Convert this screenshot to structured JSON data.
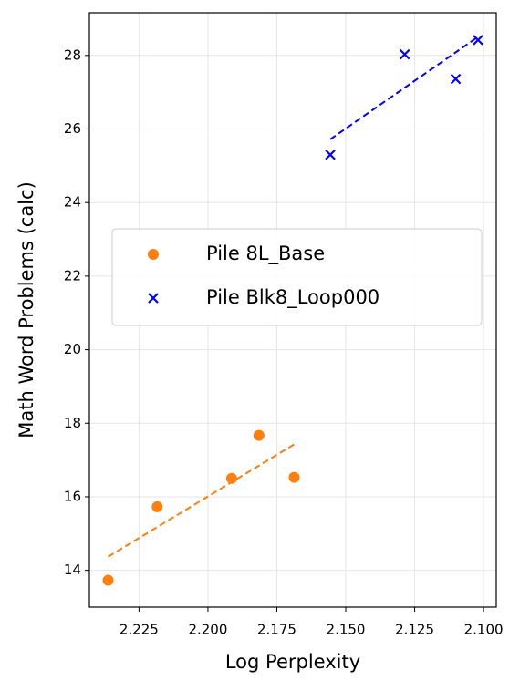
{
  "chart_data": {
    "type": "scatter",
    "xlabel": "Log Perplexity",
    "ylabel": "Math Word Problems (calc)",
    "xlim": [
      2.243,
      2.0954
    ],
    "ylim": [
      13.0,
      29.16
    ],
    "xticks": [
      2.225,
      {
        "value": 2.2,
        "label": "2.200"
      },
      2.175,
      {
        "value": 2.15,
        "label": "2.150"
      },
      2.125,
      {
        "value": 2.1,
        "label": "2.100"
      }
    ],
    "yticks": [
      14,
      16,
      18,
      20,
      22,
      24,
      26,
      28
    ],
    "grid": true,
    "legend": "center right",
    "series": [
      {
        "name": "Pile 8L_Base",
        "color": "#ff7f0e",
        "marker": "circle",
        "x": [
          2.2362,
          2.2184,
          2.1914,
          2.1815,
          2.1687
        ],
        "values": [
          13.73,
          15.73,
          16.5,
          17.67,
          16.53
        ],
        "fit": {
          "x": [
            2.2362,
            2.1684
          ],
          "y": [
            14.37,
            17.44
          ]
        }
      },
      {
        "name": "Pile Blk8_Loop000",
        "color": "#0000ff",
        "marker": "x",
        "x": [
          2.1556,
          2.1286,
          2.1101,
          2.102
        ],
        "values": [
          25.3,
          28.03,
          27.36,
          28.42
        ],
        "fit": {
          "x": [
            2.1556,
            2.1021
          ],
          "y": [
            25.72,
            28.5
          ]
        }
      }
    ]
  }
}
